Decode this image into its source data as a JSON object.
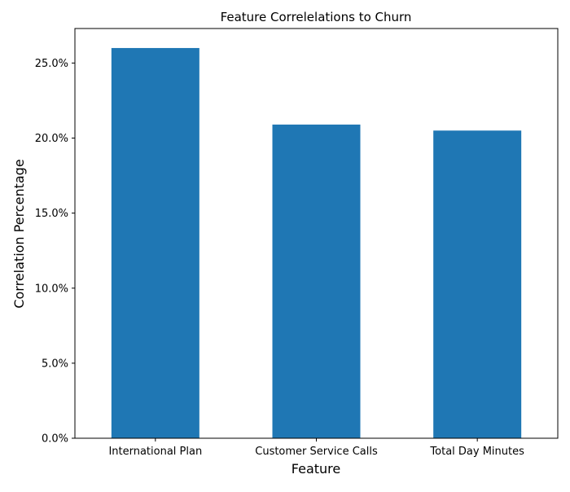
{
  "chart_data": {
    "type": "bar",
    "title": "Feature Correlelations to Churn",
    "xlabel": "Feature",
    "ylabel": "Correlation Percentage",
    "categories": [
      "International Plan",
      "Customer Service Calls",
      "Total Day Minutes"
    ],
    "values": [
      0.26,
      0.209,
      0.205
    ],
    "ylim": [
      0,
      0.273
    ],
    "yticks": [
      0.0,
      0.05,
      0.1,
      0.15,
      0.2,
      0.25
    ],
    "ytick_labels": [
      "0.0%",
      "5.0%",
      "10.0%",
      "15.0%",
      "20.0%",
      "25.0%"
    ],
    "bar_color": "#1f77b4",
    "grid": false
  }
}
